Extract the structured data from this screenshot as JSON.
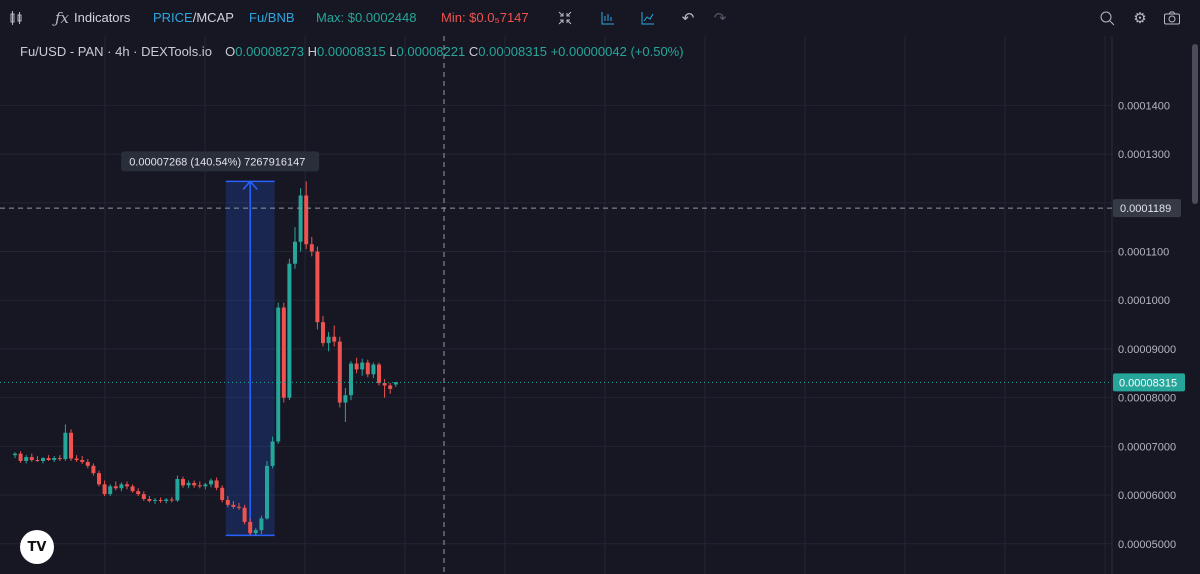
{
  "toolbar": {
    "indicators_label": "Indicators",
    "price_label": "PRICE",
    "mcap_label": "/MCAP",
    "pair_label": "Fu/BNB",
    "max_label": "Max: $0.0002448",
    "min_label": "Min: $0.0₅7147"
  },
  "legend": {
    "symbol": "Fu/USD - PAN · 4h · DEXTools.io",
    "o_key": "O",
    "o_val": "0.00008273",
    "h_key": "H",
    "h_val": "0.00008315",
    "l_key": "L",
    "l_val": "0.00008221",
    "c_key": "C",
    "c_val": "0.00008315",
    "change": "+0.00000042 (+0.50%)"
  },
  "colors": {
    "up": "#26a69a",
    "down": "#ef5350",
    "measure": "#2962ff",
    "background": "#161723"
  },
  "chart_data": {
    "type": "candlestick",
    "title": "Fu/USD - PAN · 4h · DEXTools.io",
    "ylim": [
      4.38e-05,
      0.0001526
    ],
    "y_ticks": [
      "0.00005000",
      "0.00006000",
      "0.00007000",
      "0.00008000",
      "0.00009000",
      "0.0001000",
      "0.0001100",
      "0.0001200",
      "0.0001300",
      "0.0001400"
    ],
    "y_tick_values": [
      5e-05,
      6e-05,
      7e-05,
      8e-05,
      9e-05,
      0.0001,
      0.00011,
      0.00012,
      0.00013,
      0.00014
    ],
    "crosshair_price_label": "0.0001189",
    "crosshair_price": 0.0001189,
    "last_price_label": "0.00008315",
    "last_price": 8.315e-05,
    "measure_label": "0.00007268 (140.54%) 7267916147",
    "measure_from": 5.172e-05,
    "measure_to": 0.0001244,
    "candles": [
      {
        "o": 6.82e-05,
        "h": 6.88e-05,
        "l": 6.76e-05,
        "c": 6.85e-05
      },
      {
        "o": 6.85e-05,
        "h": 6.9e-05,
        "l": 6.66e-05,
        "c": 6.7e-05
      },
      {
        "o": 6.7e-05,
        "h": 6.82e-05,
        "l": 6.65e-05,
        "c": 6.78e-05
      },
      {
        "o": 6.78e-05,
        "h": 6.85e-05,
        "l": 6.68e-05,
        "c": 6.72e-05
      },
      {
        "o": 6.72e-05,
        "h": 6.8e-05,
        "l": 6.68e-05,
        "c": 6.7e-05
      },
      {
        "o": 6.7e-05,
        "h": 6.78e-05,
        "l": 6.65e-05,
        "c": 6.76e-05
      },
      {
        "o": 6.76e-05,
        "h": 6.82e-05,
        "l": 6.7e-05,
        "c": 6.72e-05
      },
      {
        "o": 6.72e-05,
        "h": 6.8e-05,
        "l": 6.68e-05,
        "c": 6.76e-05
      },
      {
        "o": 6.76e-05,
        "h": 6.82e-05,
        "l": 6.7e-05,
        "c": 6.74e-05
      },
      {
        "o": 6.74e-05,
        "h": 7.45e-05,
        "l": 6.7e-05,
        "c": 7.28e-05
      },
      {
        "o": 7.28e-05,
        "h": 7.35e-05,
        "l": 6.7e-05,
        "c": 6.75e-05
      },
      {
        "o": 6.75e-05,
        "h": 6.82e-05,
        "l": 6.68e-05,
        "c": 6.72e-05
      },
      {
        "o": 6.72e-05,
        "h": 6.8e-05,
        "l": 6.64e-05,
        "c": 6.68e-05
      },
      {
        "o": 6.68e-05,
        "h": 6.74e-05,
        "l": 6.55e-05,
        "c": 6.6e-05
      },
      {
        "o": 6.6e-05,
        "h": 6.65e-05,
        "l": 6.4e-05,
        "c": 6.45e-05
      },
      {
        "o": 6.45e-05,
        "h": 6.5e-05,
        "l": 6.18e-05,
        "c": 6.22e-05
      },
      {
        "o": 6.22e-05,
        "h": 6.3e-05,
        "l": 5.98e-05,
        "c": 6.02e-05
      },
      {
        "o": 6.02e-05,
        "h": 6.22e-05,
        "l": 5.98e-05,
        "c": 6.18e-05
      },
      {
        "o": 6.18e-05,
        "h": 6.28e-05,
        "l": 6.1e-05,
        "c": 6.14e-05
      },
      {
        "o": 6.14e-05,
        "h": 6.26e-05,
        "l": 6.08e-05,
        "c": 6.22e-05
      },
      {
        "o": 6.22e-05,
        "h": 6.28e-05,
        "l": 6.12e-05,
        "c": 6.18e-05
      },
      {
        "o": 6.18e-05,
        "h": 6.22e-05,
        "l": 6.05e-05,
        "c": 6.08e-05
      },
      {
        "o": 6.08e-05,
        "h": 6.14e-05,
        "l": 5.98e-05,
        "c": 6.02e-05
      },
      {
        "o": 6.02e-05,
        "h": 6.08e-05,
        "l": 5.88e-05,
        "c": 5.92e-05
      },
      {
        "o": 5.92e-05,
        "h": 5.98e-05,
        "l": 5.85e-05,
        "c": 5.88e-05
      },
      {
        "o": 5.88e-05,
        "h": 5.94e-05,
        "l": 5.82e-05,
        "c": 5.9e-05
      },
      {
        "o": 5.9e-05,
        "h": 5.95e-05,
        "l": 5.84e-05,
        "c": 5.88e-05
      },
      {
        "o": 5.88e-05,
        "h": 5.94e-05,
        "l": 5.83e-05,
        "c": 5.91e-05
      },
      {
        "o": 5.91e-05,
        "h": 5.96e-05,
        "l": 5.85e-05,
        "c": 5.89e-05
      },
      {
        "o": 5.89e-05,
        "h": 6.4e-05,
        "l": 5.86e-05,
        "c": 6.33e-05
      },
      {
        "o": 6.33e-05,
        "h": 6.38e-05,
        "l": 6.15e-05,
        "c": 6.2e-05
      },
      {
        "o": 6.2e-05,
        "h": 6.3e-05,
        "l": 6.14e-05,
        "c": 6.25e-05
      },
      {
        "o": 6.25e-05,
        "h": 6.3e-05,
        "l": 6.15e-05,
        "c": 6.2e-05
      },
      {
        "o": 6.2e-05,
        "h": 6.28e-05,
        "l": 6.14e-05,
        "c": 6.18e-05
      },
      {
        "o": 6.18e-05,
        "h": 6.25e-05,
        "l": 6.12e-05,
        "c": 6.22e-05
      },
      {
        "o": 6.22e-05,
        "h": 6.34e-05,
        "l": 6.16e-05,
        "c": 6.3e-05
      },
      {
        "o": 6.3e-05,
        "h": 6.36e-05,
        "l": 6.1e-05,
        "c": 6.15e-05
      },
      {
        "o": 6.15e-05,
        "h": 6.2e-05,
        "l": 5.85e-05,
        "c": 5.9e-05
      },
      {
        "o": 5.9e-05,
        "h": 5.98e-05,
        "l": 5.75e-05,
        "c": 5.8e-05
      },
      {
        "o": 5.8e-05,
        "h": 5.88e-05,
        "l": 5.72e-05,
        "c": 5.76e-05
      },
      {
        "o": 5.76e-05,
        "h": 5.84e-05,
        "l": 5.7e-05,
        "c": 5.74e-05
      },
      {
        "o": 5.74e-05,
        "h": 5.8e-05,
        "l": 5.4e-05,
        "c": 5.45e-05
      },
      {
        "o": 5.45e-05,
        "h": 5.52e-05,
        "l": 5.18e-05,
        "c": 5.22e-05
      },
      {
        "o": 5.22e-05,
        "h": 5.32e-05,
        "l": 5.17e-05,
        "c": 5.28e-05
      },
      {
        "o": 5.28e-05,
        "h": 5.58e-05,
        "l": 5.2e-05,
        "c": 5.52e-05
      },
      {
        "o": 5.52e-05,
        "h": 6.7e-05,
        "l": 5.5e-05,
        "c": 6.6e-05
      },
      {
        "o": 6.6e-05,
        "h": 7.2e-05,
        "l": 6.55e-05,
        "c": 7.1e-05
      },
      {
        "o": 7.1e-05,
        "h": 9.95e-05,
        "l": 7.05e-05,
        "c": 9.85e-05
      },
      {
        "o": 9.85e-05,
        "h": 9.95e-05,
        "l": 7.9e-05,
        "c": 8e-05
      },
      {
        "o": 8e-05,
        "h": 0.0001085,
        "l": 7.95e-05,
        "c": 0.0001075
      },
      {
        "o": 0.0001075,
        "h": 0.000115,
        "l": 0.0001065,
        "c": 0.000112
      },
      {
        "o": 0.000112,
        "h": 0.000123,
        "l": 0.00011,
        "c": 0.0001215
      },
      {
        "o": 0.0001215,
        "h": 0.0001244,
        "l": 0.0001105,
        "c": 0.0001115
      },
      {
        "o": 0.0001115,
        "h": 0.000113,
        "l": 0.000109,
        "c": 0.00011
      },
      {
        "o": 0.00011,
        "h": 0.000111,
        "l": 9.4e-05,
        "c": 9.55e-05
      },
      {
        "o": 9.55e-05,
        "h": 9.68e-05,
        "l": 9.05e-05,
        "c": 9.12e-05
      },
      {
        "o": 9.12e-05,
        "h": 9.35e-05,
        "l": 8.95e-05,
        "c": 9.25e-05
      },
      {
        "o": 9.25e-05,
        "h": 9.48e-05,
        "l": 9.05e-05,
        "c": 9.15e-05
      },
      {
        "o": 9.15e-05,
        "h": 9.25e-05,
        "l": 7.8e-05,
        "c": 7.9e-05
      },
      {
        "o": 7.9e-05,
        "h": 8.2e-05,
        "l": 7.5e-05,
        "c": 8.05e-05
      },
      {
        "o": 8.05e-05,
        "h": 8.75e-05,
        "l": 7.95e-05,
        "c": 8.7e-05
      },
      {
        "o": 8.7e-05,
        "h": 8.82e-05,
        "l": 8.5e-05,
        "c": 8.58e-05
      },
      {
        "o": 8.58e-05,
        "h": 8.8e-05,
        "l": 8.45e-05,
        "c": 8.72e-05
      },
      {
        "o": 8.72e-05,
        "h": 8.78e-05,
        "l": 8.42e-05,
        "c": 8.48e-05
      },
      {
        "o": 8.48e-05,
        "h": 8.72e-05,
        "l": 8.4e-05,
        "c": 8.68e-05
      },
      {
        "o": 8.68e-05,
        "h": 8.72e-05,
        "l": 8.25e-05,
        "c": 8.3e-05
      },
      {
        "o": 8.3e-05,
        "h": 8.38e-05,
        "l": 8e-05,
        "c": 8.25e-05
      },
      {
        "o": 8.25e-05,
        "h": 8.3e-05,
        "l": 8.08e-05,
        "c": 8.18e-05
      },
      {
        "o": 8.27e-05,
        "h": 8.32e-05,
        "l": 8.22e-05,
        "c": 8.32e-05
      }
    ]
  }
}
